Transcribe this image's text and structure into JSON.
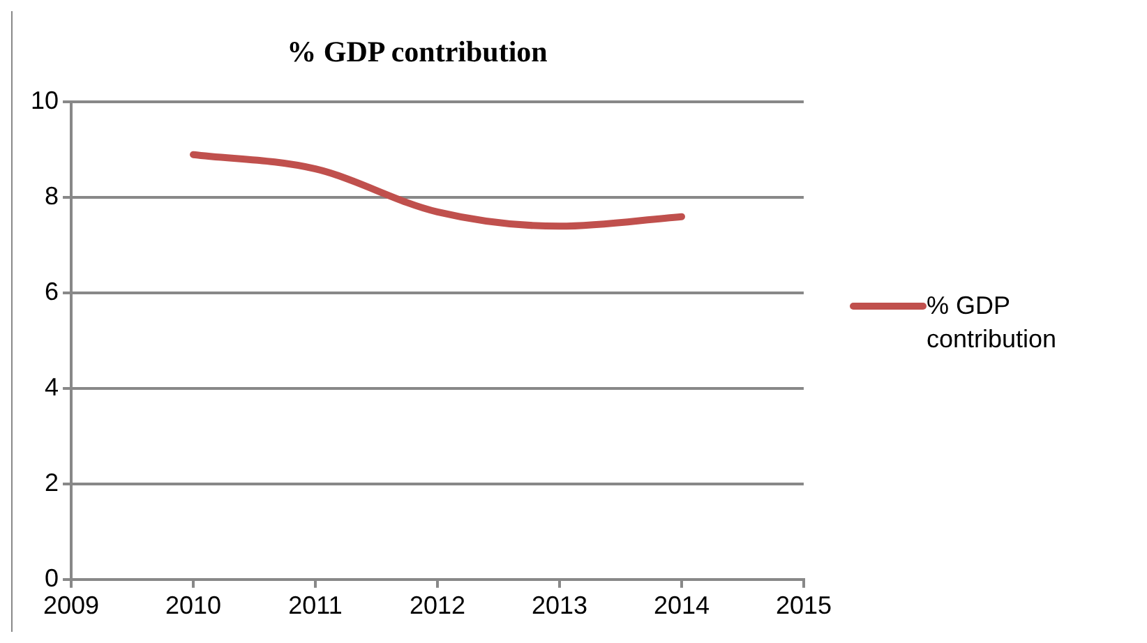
{
  "chart_data": {
    "type": "line",
    "title": "% GDP contribution",
    "x": [
      2010,
      2011,
      2012,
      2013,
      2014
    ],
    "series": [
      {
        "name": "% GDP contribution",
        "color": "#c0504d",
        "values": [
          8.9,
          8.6,
          7.7,
          7.4,
          7.6
        ]
      }
    ],
    "xlim": [
      2009,
      2015
    ],
    "xticks": [
      2009,
      2010,
      2011,
      2012,
      2013,
      2014,
      2015
    ],
    "ylim": [
      0,
      10
    ],
    "yticks": [
      0,
      2,
      4,
      6,
      8,
      10
    ],
    "grid": "y",
    "legend": "right",
    "marker": "none",
    "line_style": "solid"
  }
}
